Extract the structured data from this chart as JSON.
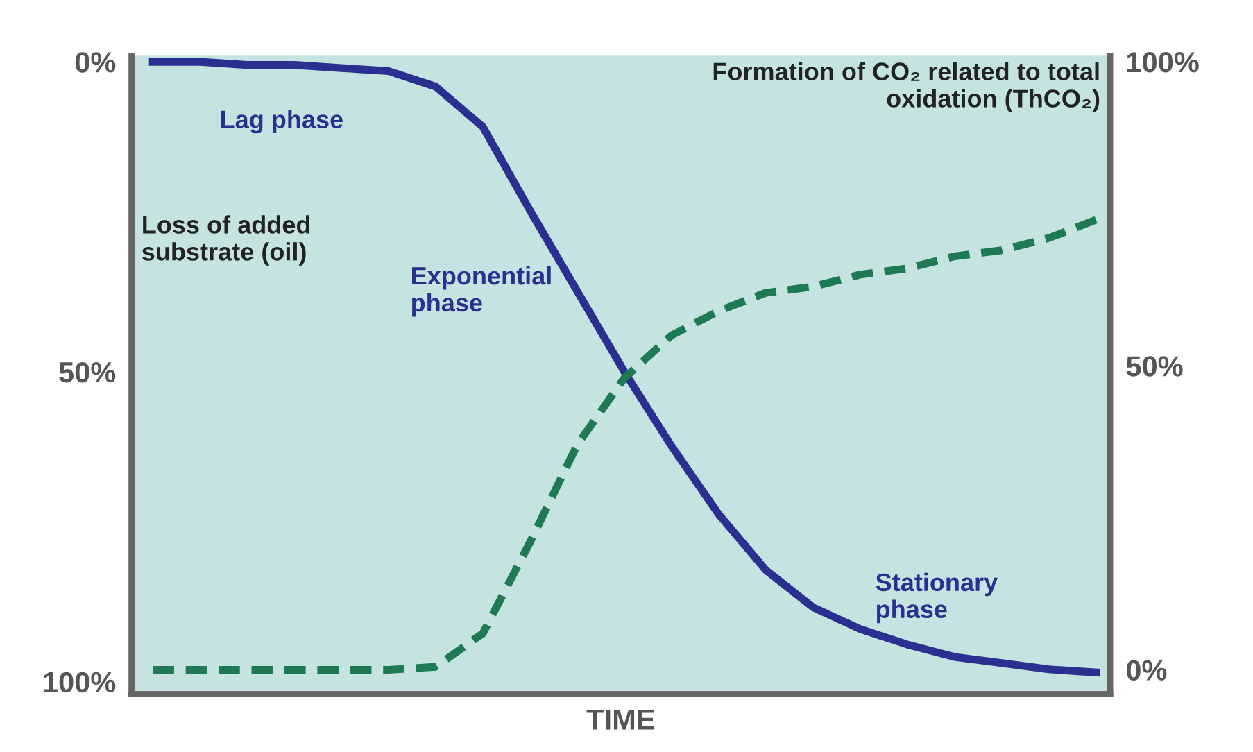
{
  "chart_data": {
    "type": "line",
    "xlabel": "TIME",
    "ylabel": "Loss of added substrate (oil)",
    "y2label": "Formation of CO₂ related to total oxidation (ThCO₂)",
    "categories": [
      null,
      null,
      null,
      null,
      null,
      null,
      null,
      null,
      null,
      null,
      null,
      null,
      null,
      null,
      null,
      null,
      null,
      null,
      null,
      null,
      null
    ],
    "series": [
      {
        "color": "#2b2f8f",
        "line_style": "solid",
        "values": [
          0,
          0,
          0.5,
          0.5,
          1,
          1.5,
          4,
          10.5,
          24,
          37,
          50,
          62,
          73,
          82,
          88,
          91.5,
          94,
          96,
          97,
          98,
          98.5
        ]
      },
      {
        "color": "#1e7a55",
        "line_style": "dashed",
        "axis": "y2",
        "values": [
          0,
          0,
          0,
          0,
          0,
          0,
          0.5,
          6,
          21,
          37,
          48,
          55,
          59,
          62,
          63,
          65,
          66,
          68,
          69,
          71,
          74
        ]
      }
    ],
    "ylim": [
      102,
      -1
    ],
    "yticks": [
      {
        "value": 0,
        "label": "0%"
      },
      {
        "value": 50,
        "label": "50%"
      },
      {
        "value": 100,
        "label": "100%"
      }
    ],
    "y2lim": [
      -4,
      101
    ],
    "y2ticks": [
      {
        "value": 0,
        "label": "0%"
      },
      {
        "value": 50,
        "label": "50%"
      },
      {
        "value": 100,
        "label": "100%"
      }
    ],
    "annotations": [
      "Lag phase",
      "Exponential phase",
      "Stationary phase"
    ],
    "grid": false
  }
}
